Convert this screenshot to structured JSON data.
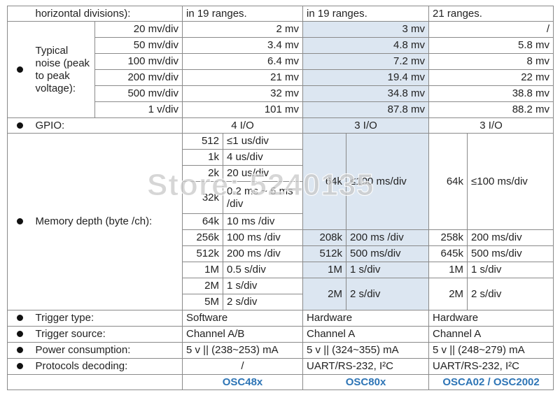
{
  "header": {
    "label": "horizontal divisions):",
    "osc48x": "in 19 ranges.",
    "osc80x": "in 19 ranges.",
    "osca02": "21 ranges."
  },
  "noise": {
    "label": "Typical noise (peak to peak voltage):",
    "rows": [
      [
        "20 mv/div",
        "2 mv",
        "3 mv",
        "/"
      ],
      [
        "50 mv/div",
        "3.4 mv",
        "4.8 mv",
        "5.8 mv"
      ],
      [
        "100 mv/div",
        "6.4 mv",
        "7.2 mv",
        "8 mv"
      ],
      [
        "200 mv/div",
        "21 mv",
        "19.4 mv",
        "22 mv"
      ],
      [
        "500 mv/div",
        "32 mv",
        "34.8 mv",
        "38.8 mv"
      ],
      [
        "1 v/div",
        "101 mv",
        "87.8 mv",
        "88.2 mv"
      ]
    ]
  },
  "gpio": {
    "label": "GPIO:",
    "osc48x": "4 I/O",
    "osc80x": "3 I/O",
    "osca02": "3 I/O"
  },
  "memory": {
    "label": "Memory depth (byte /ch):",
    "osc48x": [
      [
        "512",
        "≤1 us/div"
      ],
      [
        "1k",
        "4 us/div"
      ],
      [
        "2k",
        "20 us/div"
      ],
      [
        "32k",
        "0.2 ms ~ 5 ms /div"
      ],
      [
        "64k",
        "10 ms /div"
      ],
      [
        "256k",
        "100 ms /div"
      ],
      [
        "512k",
        "200 ms /div"
      ],
      [
        "1M",
        "0.5 s/div"
      ],
      [
        "2M",
        "1 s/div"
      ],
      [
        "5M",
        "2 s/div"
      ]
    ],
    "osc80x": [
      [
        "64k",
        "≤100 ms/div"
      ],
      [
        "208k",
        "200 ms /div"
      ],
      [
        "512k",
        "500 ms/div"
      ],
      [
        "1M",
        "1 s/div"
      ],
      [
        "2M",
        "2 s/div"
      ]
    ],
    "osca02": [
      [
        "64k",
        "≤100 ms/div"
      ],
      [
        "258k",
        "200 ms/div"
      ],
      [
        "645k",
        "500 ms/div"
      ],
      [
        "1M",
        "1 s/div"
      ],
      [
        "2M",
        "2 s/div"
      ]
    ]
  },
  "specs": [
    {
      "label": "Trigger type:",
      "osc48x": "Software",
      "osc80x": "Hardware",
      "osca02": "Hardware"
    },
    {
      "label": "Trigger source:",
      "osc48x": "Channel A/B",
      "osc80x": "Channel A",
      "osca02": "Channel A"
    },
    {
      "label": "Power consumption:",
      "osc48x": "5 v || (238~253) mA",
      "osc80x": "5 v || (324~355) mA",
      "osca02": "5 v || (248~279) mA"
    },
    {
      "label": "Protocols decoding:",
      "osc48x": "/",
      "osc80x": "UART/RS-232, I²C",
      "osca02": "UART/RS-232, I²C"
    }
  ],
  "models": [
    "OSC48x",
    "OSC80x",
    "OSCA02 / OSC2002"
  ],
  "watermark": "Store: 5240135"
}
